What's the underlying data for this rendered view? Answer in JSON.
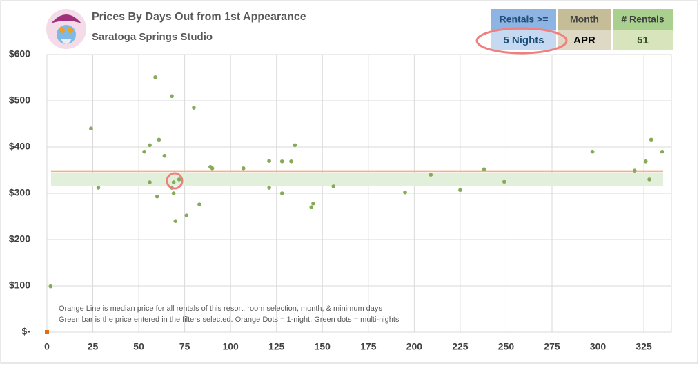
{
  "chart_data": {
    "type": "scatter",
    "title": "Prices By Days Out from 1st Appearance",
    "subtitle": "Saratoga Springs Studio",
    "xlim": [
      0,
      340
    ],
    "xticks": [
      0,
      25,
      50,
      75,
      100,
      125,
      150,
      175,
      200,
      225,
      250,
      275,
      300,
      325
    ],
    "ylim": [
      0,
      600
    ],
    "yticks": [
      {
        "value": 0,
        "label": "$-"
      },
      {
        "value": 100,
        "label": "$100"
      },
      {
        "value": 200,
        "label": "$200"
      },
      {
        "value": 300,
        "label": "$300"
      },
      {
        "value": 400,
        "label": "$400"
      },
      {
        "value": 500,
        "label": "$500"
      },
      {
        "value": 600,
        "label": "$600"
      }
    ],
    "grid": true,
    "median": 348,
    "median_color": "#f4b183",
    "band": [
      315,
      345
    ],
    "band_color": "#e2efda",
    "series": [
      {
        "color": "#86a95a",
        "x": [
          2,
          24,
          28,
          53,
          56,
          56,
          59,
          60,
          61,
          64,
          68,
          68,
          69,
          69,
          70,
          72,
          76,
          80,
          83,
          89,
          90,
          107,
          121,
          121,
          128,
          128,
          133,
          135,
          144,
          145,
          156,
          195,
          209,
          225,
          238,
          249,
          297,
          320,
          326,
          328,
          329,
          335
        ],
        "values": [
          99,
          440,
          312,
          390,
          404,
          324,
          551,
          293,
          416,
          381,
          510,
          312,
          300,
          324,
          240,
          330,
          252,
          485,
          276,
          357,
          354,
          354,
          370,
          312,
          369,
          300,
          369,
          404,
          270,
          278,
          315,
          302,
          340,
          307,
          352,
          325,
          390,
          349,
          369,
          330,
          416,
          390
        ]
      },
      {
        "color": "#e46c0a",
        "x": [
          0
        ],
        "values": [
          0
        ]
      }
    ],
    "notes": [
      "Orange Line is median price for all rentals of this resort, room selection, month, & minimum days",
      "Green bar is the price entered in the filters selected. Orange Dots = 1-night, Green dots = multi-nights"
    ]
  },
  "filters": [
    {
      "label": "Rentals >=",
      "value": "5 Nights"
    },
    {
      "label": "Month",
      "value": "APR"
    },
    {
      "label": "# Rentals",
      "value": "51"
    }
  ]
}
